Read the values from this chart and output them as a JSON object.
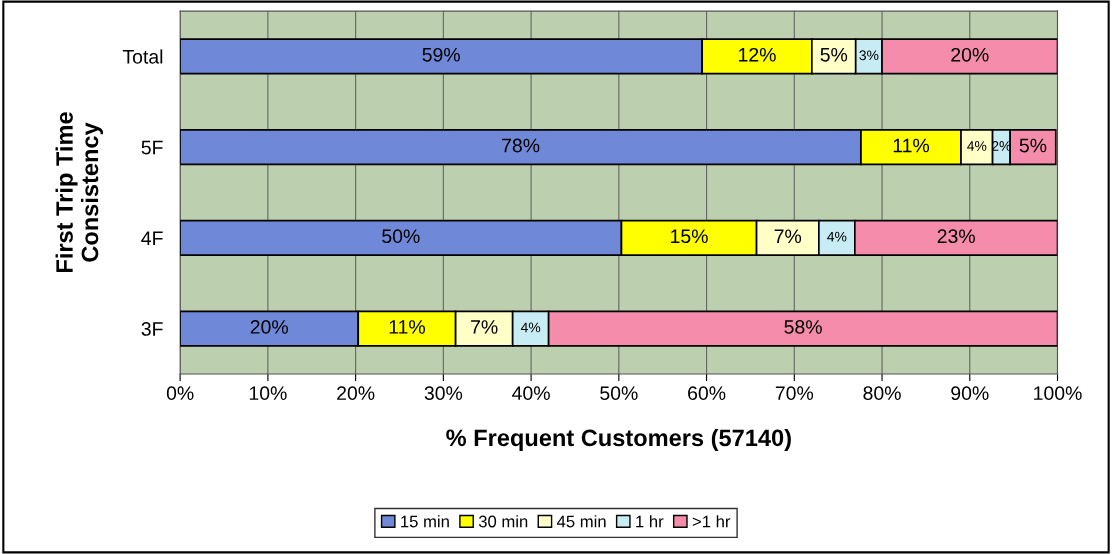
{
  "chart_data": {
    "type": "bar",
    "orientation": "horizontal",
    "stacked": true,
    "xlabel": "% Frequent Customers (57140)",
    "ylabel": "First Trip Time\nConsistency",
    "categories": [
      "Total",
      "5F",
      "4F",
      "3F"
    ],
    "series": [
      {
        "name": "15 min",
        "color": "#7088d8",
        "values": [
          59.5,
          77.6,
          50.3,
          20.3
        ],
        "value_labels": [
          "59%",
          "78%",
          "50%",
          "20%"
        ]
      },
      {
        "name": "30 min",
        "color": "#ffff00",
        "values": [
          12.5,
          11.4,
          15.4,
          11.1
        ],
        "value_labels": [
          "12%",
          "11%",
          "15%",
          "11%"
        ]
      },
      {
        "name": "45 min",
        "color": "#ffffc8",
        "values": [
          5,
          3.6,
          7.1,
          6.5
        ],
        "value_labels": [
          "5%",
          "4%",
          "7%",
          "7%"
        ]
      },
      {
        "name": "1 hr",
        "color": "#c8ecf4",
        "values": [
          3,
          2,
          4.1,
          4.1
        ],
        "value_labels": [
          "3%",
          "2%",
          "4%",
          "4%"
        ]
      },
      {
        "name": ">1 hr",
        "color": "#f58cac",
        "values": [
          20,
          5.2,
          23.1,
          58
        ],
        "value_labels": [
          "20%",
          "5%",
          "23%",
          "58%"
        ]
      }
    ],
    "xlim": [
      0,
      100
    ],
    "xticks": [
      {
        "value": 0,
        "label": "0%"
      },
      {
        "value": 10,
        "label": "10%"
      },
      {
        "value": 20,
        "label": "20%"
      },
      {
        "value": 30,
        "label": "30%"
      },
      {
        "value": 40,
        "label": "40%"
      },
      {
        "value": 50,
        "label": "50%"
      },
      {
        "value": 60,
        "label": "60%"
      },
      {
        "value": 70,
        "label": "70%"
      },
      {
        "value": 80,
        "label": "80%"
      },
      {
        "value": 90,
        "label": "90%"
      },
      {
        "value": 100,
        "label": "100%"
      }
    ],
    "grid": "x",
    "legend": "bottom"
  }
}
